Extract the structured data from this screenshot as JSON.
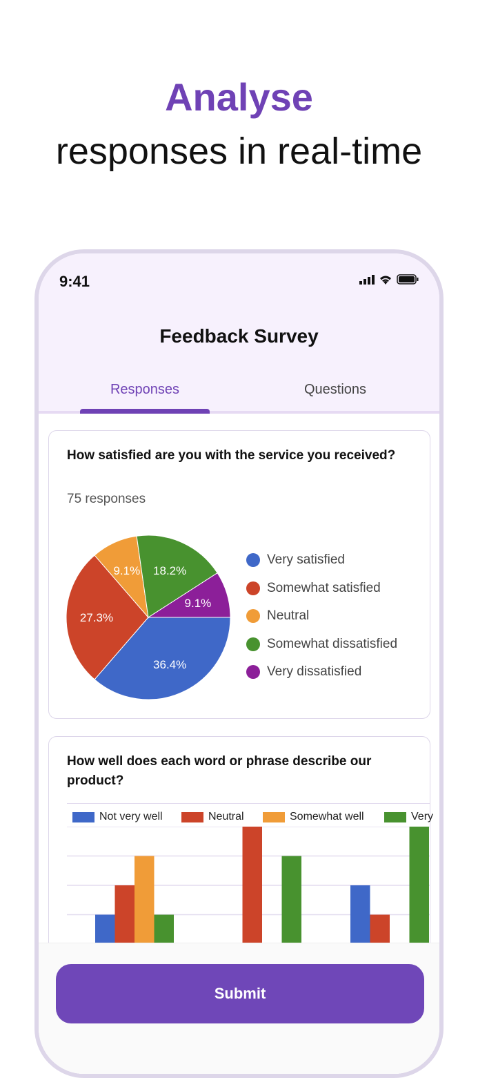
{
  "hero": {
    "highlight": "Analyse",
    "subtitle": "responses in real-time"
  },
  "status_bar": {
    "time": "9:41",
    "icons": [
      "signal-icon",
      "wifi-icon",
      "battery-icon"
    ]
  },
  "app": {
    "title": "Feedback Survey",
    "tabs": [
      {
        "label": "Responses",
        "active": true
      },
      {
        "label": "Questions",
        "active": false
      }
    ]
  },
  "question1": {
    "text": "How satisfied are you with the service you received?",
    "responses": "75 responses"
  },
  "question2": {
    "text": "How well does each word or phrase describe our product?"
  },
  "submit_label": "Submit",
  "colors": {
    "accent": "#6f42b5",
    "blue": "#3f68c8",
    "red": "#cc4429",
    "orange": "#f09c38",
    "green": "#48922f",
    "purple": "#8c1f99"
  },
  "chart_data": [
    {
      "type": "pie",
      "labels": [
        "Very satisfied",
        "Somewhat satisfied",
        "Neutral",
        "Somewhat dissatisfied",
        "Very dissatisfied"
      ],
      "values": [
        36.4,
        27.3,
        9.1,
        18.2,
        9.1
      ],
      "data_labels": [
        "36.4%",
        "27.3%",
        "9.1%",
        "18.2%",
        "9.1%"
      ],
      "colors": [
        "#3f68c8",
        "#cc4429",
        "#f09c38",
        "#48922f",
        "#8c1f99"
      ],
      "legend": "right"
    },
    {
      "type": "bar",
      "legend": "top",
      "grid": true,
      "ylim": [
        0,
        4
      ],
      "series": [
        {
          "name": "Not very well",
          "color": "#3f68c8",
          "values": [
            1,
            0,
            2
          ]
        },
        {
          "name": "Neutral",
          "color": "#cc4429",
          "values": [
            2,
            4,
            1
          ]
        },
        {
          "name": "Somewhat well",
          "color": "#f09c38",
          "values": [
            3,
            0,
            0
          ]
        },
        {
          "name": "Very",
          "color": "#48922f",
          "values": [
            1,
            3,
            4
          ]
        }
      ]
    }
  ]
}
